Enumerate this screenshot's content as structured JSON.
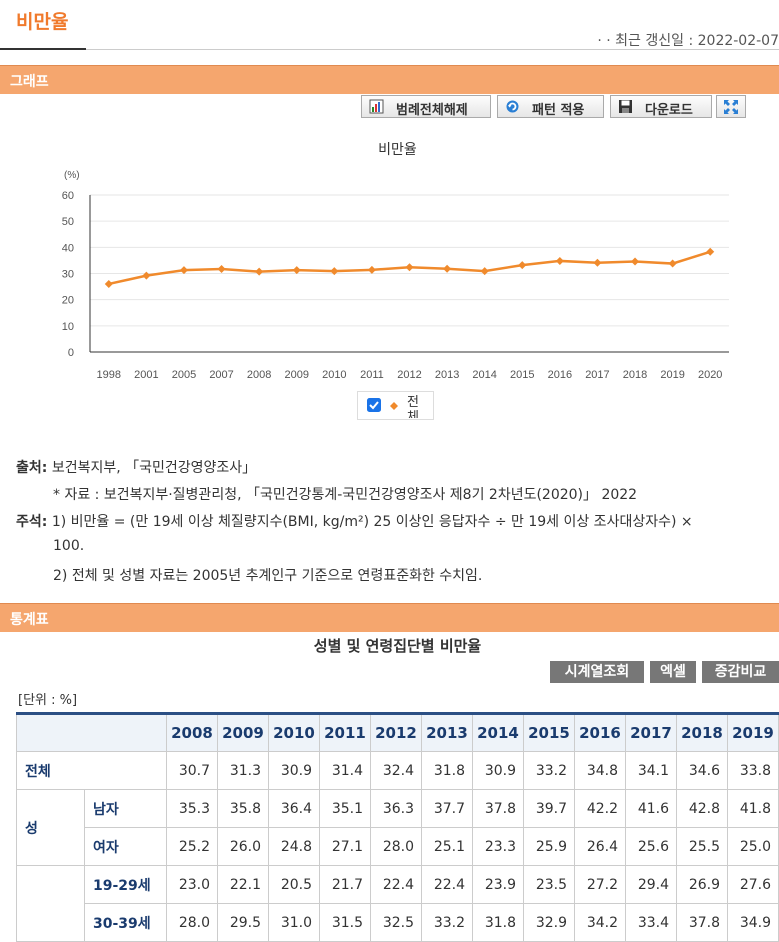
{
  "page_title": "비만율",
  "updated": "· · 최근 갱신일 : 2022-02-07",
  "graph_section": "그래프",
  "toolbar": {
    "legend_off": "범례전체해제",
    "apply_pattern": "패턴 적용",
    "download": "다운로드"
  },
  "icons": {
    "legend_off": "chart-icon",
    "apply_pattern": "refresh-icon",
    "download": "save-icon",
    "fullscreen": "expand-icon"
  },
  "legend": {
    "label": "전체",
    "checked": true
  },
  "colors": {
    "accent": "#f07a2c",
    "section": "#f5a66e",
    "series": "#f08a2c",
    "header": "#1a3b6e"
  },
  "chart_data": {
    "type": "line",
    "title": "비만율",
    "ylabel": "(%)",
    "xlabel": "",
    "ylim": [
      0,
      60
    ],
    "yticks": [
      0,
      10,
      20,
      30,
      40,
      50,
      60
    ],
    "categories": [
      "1998",
      "2001",
      "2005",
      "2007",
      "2008",
      "2009",
      "2010",
      "2011",
      "2012",
      "2013",
      "2014",
      "2015",
      "2016",
      "2017",
      "2018",
      "2019",
      "2020"
    ],
    "series": [
      {
        "name": "전체",
        "values": [
          26.0,
          29.2,
          31.3,
          31.7,
          30.7,
          31.3,
          30.9,
          31.4,
          32.4,
          31.8,
          30.9,
          33.2,
          34.8,
          34.1,
          34.6,
          33.8,
          38.3
        ]
      }
    ],
    "grid": true,
    "legend_position": "bottom"
  },
  "notes": {
    "source_label": "출처:",
    "source": "보건복지부, 「국민건강영양조사」",
    "material": "* 자료 : 보건복지부·질병관리청, 「국민건강통계-국민건강영양조사 제8기 2차년도(2020)」 2022",
    "remark_label": "주석:",
    "remark1a": "1) 비만율 = (만 19세 이상 체질량지수(BMI, kg/m²) 25 이상인 응답자수 ÷ 만 19세 이상 조사대상자수) ×",
    "remark1b": "100.",
    "remark2": "2) 전체 및 성별 자료는 2005년 추계인구 기준으로 연령표준화한 수치임."
  },
  "table_section": "통계표",
  "table": {
    "title": "성별 및 연령집단별 비만율",
    "buttons": [
      "시계열조회",
      "엑셀",
      "증감비교"
    ],
    "unit": "[단위 : %]",
    "years": [
      "2008",
      "2009",
      "2010",
      "2011",
      "2012",
      "2013",
      "2014",
      "2015",
      "2016",
      "2017",
      "2018",
      "2019"
    ],
    "total": {
      "label": "전체",
      "values": [
        "30.7",
        "31.3",
        "30.9",
        "31.4",
        "32.4",
        "31.8",
        "30.9",
        "33.2",
        "34.8",
        "34.1",
        "34.6",
        "33.8"
      ]
    },
    "sex_group": "성",
    "male": {
      "label": "남자",
      "values": [
        "35.3",
        "35.8",
        "36.4",
        "35.1",
        "36.3",
        "37.7",
        "37.8",
        "39.7",
        "42.2",
        "41.6",
        "42.8",
        "41.8"
      ]
    },
    "female": {
      "label": "여자",
      "values": [
        "25.2",
        "26.0",
        "24.8",
        "27.1",
        "28.0",
        "25.1",
        "23.3",
        "25.9",
        "26.4",
        "25.6",
        "25.5",
        "25.0"
      ]
    },
    "age1929": {
      "label": "19-29세",
      "values": [
        "23.0",
        "22.1",
        "20.5",
        "21.7",
        "22.4",
        "22.4",
        "23.9",
        "23.5",
        "27.2",
        "29.4",
        "26.9",
        "27.6"
      ]
    },
    "age3039": {
      "label": "30-39세",
      "values": [
        "28.0",
        "29.5",
        "31.0",
        "31.5",
        "32.5",
        "33.2",
        "31.8",
        "32.9",
        "34.2",
        "33.4",
        "37.8",
        "34.9"
      ]
    }
  }
}
